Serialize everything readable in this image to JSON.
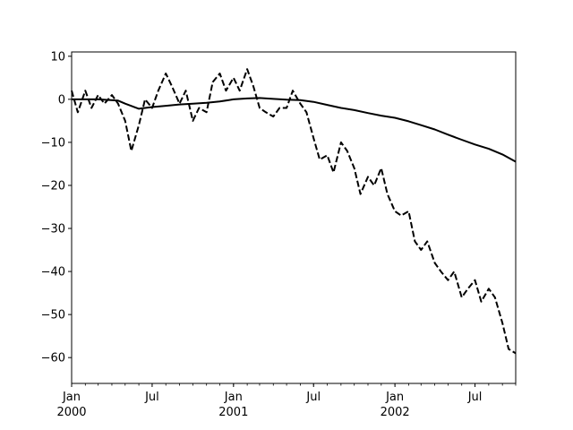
{
  "chart_data": {
    "type": "line",
    "title": "",
    "xlabel": "",
    "ylabel": "",
    "x_range": [
      "2000-01-01",
      "2002-10-01"
    ],
    "ylim": [
      -66,
      11
    ],
    "grid": false,
    "legend": "none",
    "y_ticks": [
      10,
      0,
      -10,
      -20,
      -30,
      -40,
      -50,
      -60
    ],
    "y_tick_labels": [
      "10",
      "0",
      "−10",
      "−20",
      "−30",
      "−40",
      "−50",
      "−60"
    ],
    "x_major_ticks": [
      {
        "date": "2000-01-01",
        "label": "Jan",
        "sub": "2000"
      },
      {
        "date": "2000-07-01",
        "label": "Jul",
        "sub": ""
      },
      {
        "date": "2001-01-01",
        "label": "Jan",
        "sub": "2001"
      },
      {
        "date": "2001-07-01",
        "label": "Jul",
        "sub": ""
      },
      {
        "date": "2002-01-01",
        "label": "Jan",
        "sub": "2002"
      },
      {
        "date": "2002-07-01",
        "label": "Jul",
        "sub": ""
      }
    ],
    "series": [
      {
        "style": "dashed",
        "color": "#000000",
        "x": [
          "2000-01-01",
          "2000-01-15",
          "2000-02-01",
          "2000-02-15",
          "2000-03-01",
          "2000-03-15",
          "2000-04-01",
          "2000-04-15",
          "2000-05-01",
          "2000-05-15",
          "2000-06-01",
          "2000-06-15",
          "2000-07-01",
          "2000-07-15",
          "2000-08-01",
          "2000-08-15",
          "2000-09-01",
          "2000-09-15",
          "2000-10-01",
          "2000-10-15",
          "2000-11-01",
          "2000-11-15",
          "2000-12-01",
          "2000-12-15",
          "2001-01-01",
          "2001-01-15",
          "2001-02-01",
          "2001-02-15",
          "2001-03-01",
          "2001-03-15",
          "2001-04-01",
          "2001-04-15",
          "2001-05-01",
          "2001-05-15",
          "2001-06-01",
          "2001-06-15",
          "2001-07-01",
          "2001-07-15",
          "2001-08-01",
          "2001-08-15",
          "2001-09-01",
          "2001-09-15",
          "2001-10-01",
          "2001-10-15",
          "2001-11-01",
          "2001-11-15",
          "2001-12-01",
          "2001-12-15",
          "2002-01-01",
          "2002-01-15",
          "2002-02-01",
          "2002-02-15",
          "2002-03-01",
          "2002-03-15",
          "2002-04-01",
          "2002-04-15",
          "2002-05-01",
          "2002-05-15",
          "2002-06-01",
          "2002-06-15",
          "2002-07-01",
          "2002-07-15",
          "2002-08-01",
          "2002-08-15",
          "2002-09-01",
          "2002-09-15",
          "2002-10-01"
        ],
        "values": [
          2,
          -3,
          2,
          -2,
          1,
          -1,
          1,
          -1,
          -5,
          -12,
          -6,
          0,
          -2,
          2,
          6,
          3,
          -1,
          2,
          -5,
          -2,
          -3,
          4,
          6,
          2,
          5,
          2,
          7,
          3,
          -2,
          -3,
          -4,
          -2,
          -2,
          2,
          -1,
          -3,
          -9,
          -14,
          -13,
          -17,
          -10,
          -12,
          -16,
          -22,
          -18,
          -20,
          -16,
          -22,
          -26,
          -27,
          -26,
          -33,
          -35,
          -33,
          -38,
          -40,
          -42,
          -40,
          -46,
          -44,
          -42,
          -47,
          -44,
          -46,
          -52,
          -58,
          -59
        ]
      },
      {
        "style": "solid",
        "color": "#000000",
        "x": [
          "2000-01-01",
          "2000-03-01",
          "2000-04-15",
          "2000-05-01",
          "2000-06-01",
          "2000-07-01",
          "2000-08-01",
          "2000-09-01",
          "2000-10-01",
          "2000-11-01",
          "2000-12-01",
          "2001-01-01",
          "2001-02-01",
          "2001-03-01",
          "2001-04-01",
          "2001-05-01",
          "2001-06-01",
          "2001-07-01",
          "2001-08-01",
          "2001-09-01",
          "2001-10-01",
          "2001-11-01",
          "2001-12-01",
          "2002-01-01",
          "2002-02-01",
          "2002-03-01",
          "2002-04-01",
          "2002-05-01",
          "2002-06-01",
          "2002-07-01",
          "2002-08-01",
          "2002-09-01",
          "2002-10-01"
        ],
        "values": [
          0,
          0,
          -0.3,
          -1,
          -2.2,
          -1.8,
          -1.5,
          -1.2,
          -1.0,
          -0.8,
          -0.5,
          0,
          0.2,
          0.3,
          0.1,
          -0.1,
          -0.2,
          -0.6,
          -1.3,
          -2.0,
          -2.5,
          -3.2,
          -3.8,
          -4.3,
          -5.1,
          -6.0,
          -7.0,
          -8.2,
          -9.4,
          -10.5,
          -11.5,
          -12.8,
          -14.5
        ]
      }
    ]
  }
}
